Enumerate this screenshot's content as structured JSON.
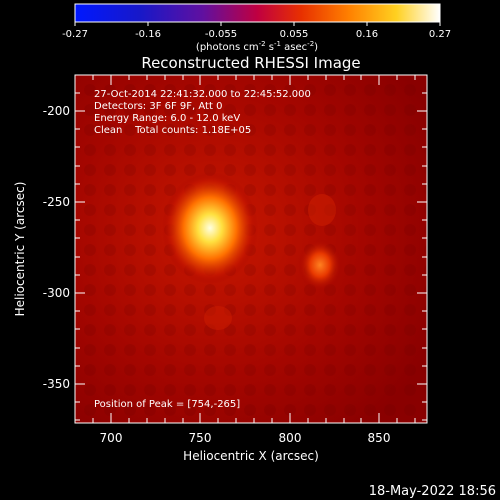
{
  "colorbar": {
    "ticks": [
      "-0.27",
      "-0.16",
      "-0.055",
      "0.055",
      "0.16",
      "0.27"
    ],
    "units_prefix": "(photons cm",
    "units_exp1": "-2",
    "units_mid1": " s",
    "units_exp2": "-1",
    "units_mid2": " asec",
    "units_exp3": "-2",
    "units_suffix": ")"
  },
  "title": "Reconstructed RHESSI Image",
  "annotations": {
    "time": "27-Oct-2014 22:41:32.000 to 22:45:52.000",
    "detectors": "Detectors: 3F 6F 9F, Att 0",
    "energy": "Energy Range: 6.0 - 12.0 keV",
    "clean": "Clean    Total counts: 1.18E+05",
    "peak": "Position of Peak = [754,-265]"
  },
  "axes": {
    "xlabel": "Heliocentric X (arcsec)",
    "ylabel": "Heliocentric Y (arcsec)",
    "xticks": [
      "700",
      "750",
      "800",
      "850"
    ],
    "yticks": [
      "-200",
      "-250",
      "-300",
      "-350"
    ]
  },
  "footer_date": "18-May-2022 18:56",
  "image": {
    "colormap": "hot",
    "sources": [
      {
        "x": 754,
        "y": -265,
        "intensity": 0.27
      },
      {
        "x": 813,
        "y": -283,
        "intensity": 0.13
      }
    ]
  }
}
